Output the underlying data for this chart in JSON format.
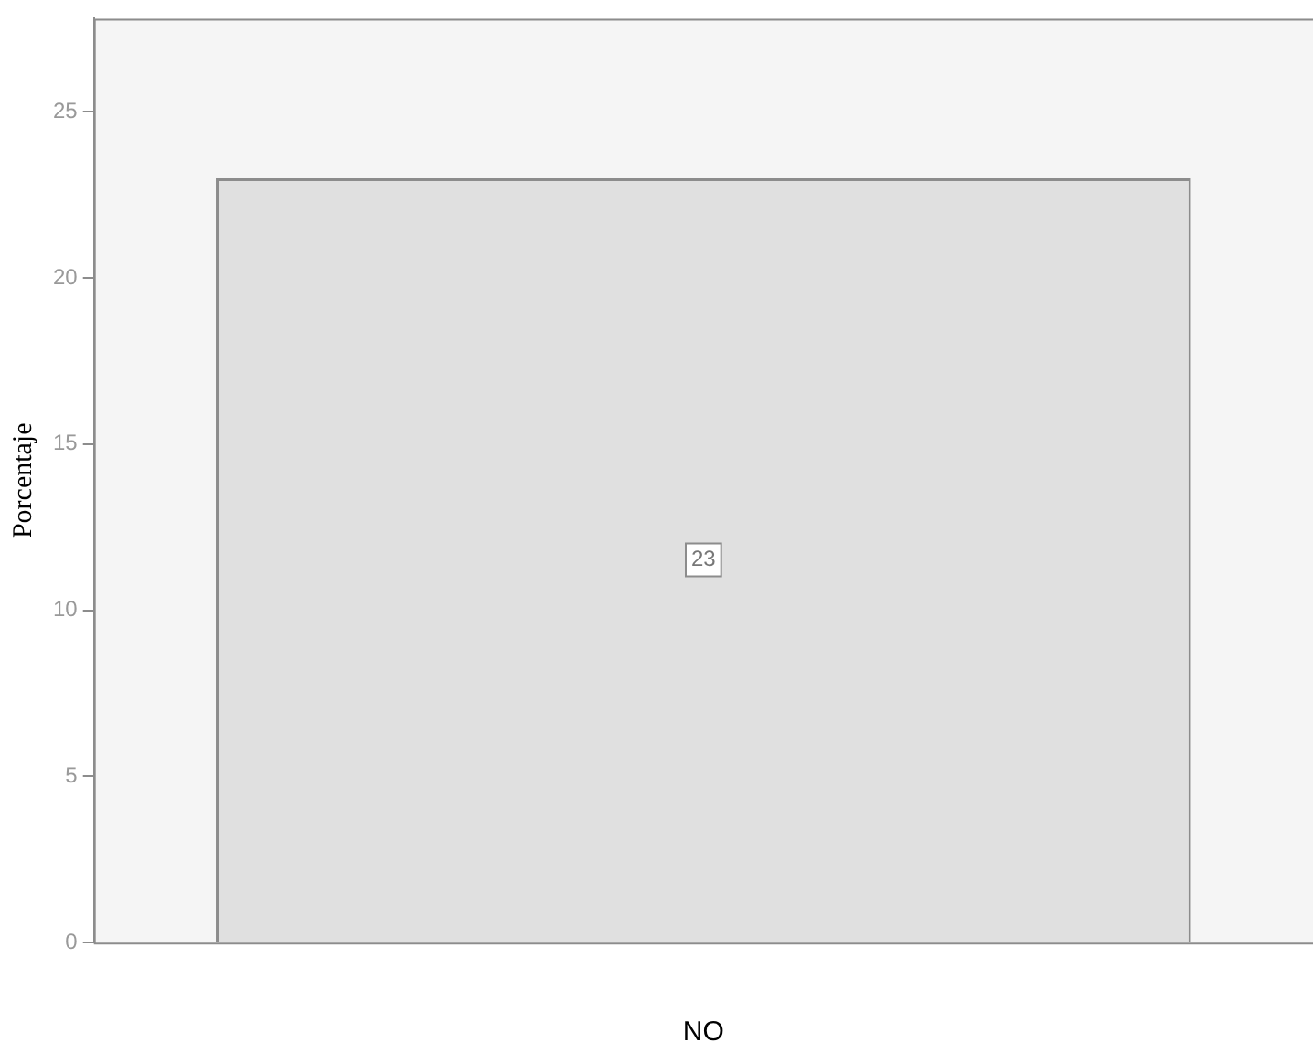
{
  "chart_data": {
    "type": "bar",
    "ylabel": "Porcentaje",
    "xlabel": "NO",
    "categories": [
      null
    ],
    "values": [
      23
    ],
    "color": "#e0e0e0",
    "ylim": [
      0,
      27.8
    ],
    "yticks": [
      0,
      5,
      10,
      15,
      20,
      25
    ],
    "grid": false,
    "legend": false,
    "data_labels": true
  }
}
